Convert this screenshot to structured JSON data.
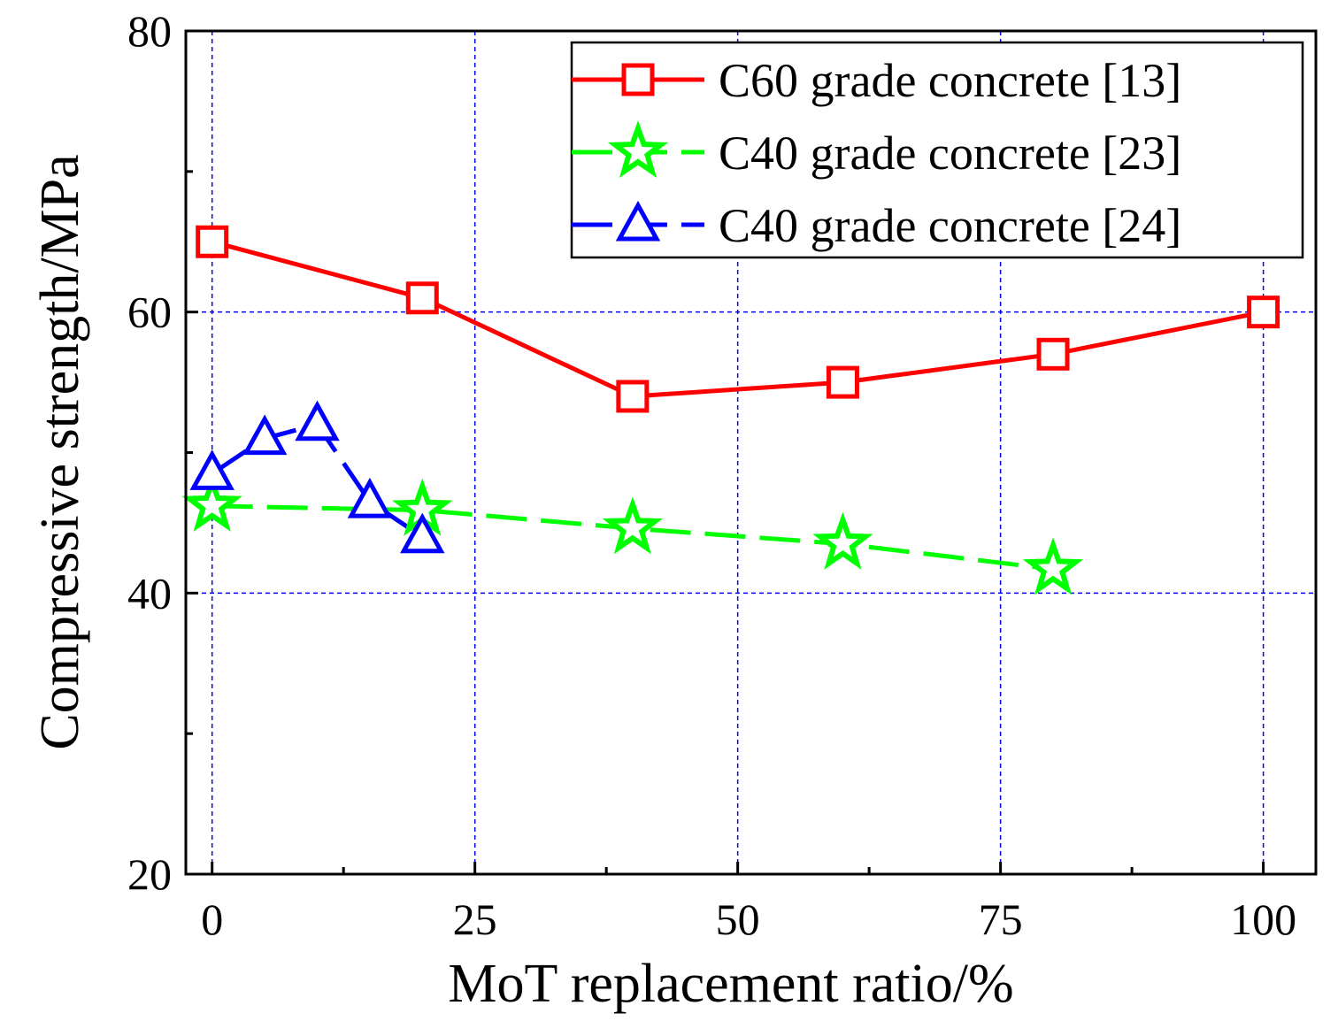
{
  "chart_data": {
    "type": "line",
    "title": "",
    "xlabel": "MoT replacement ratio/%",
    "ylabel": "Compressive strength/MPa",
    "xlim": [
      -2.5,
      105
    ],
    "ylim": [
      20,
      80
    ],
    "xticks": [
      0,
      25,
      50,
      75,
      100
    ],
    "xtick_labels": [
      "0",
      "25",
      "50",
      "75",
      "100"
    ],
    "yticks": [
      20,
      40,
      60,
      80
    ],
    "ytick_labels": [
      "20",
      "40",
      "60",
      "80"
    ],
    "grid": true,
    "legend_position": "top-right",
    "series": [
      {
        "name": "C60 grade concrete [13]",
        "color": "#ff0000",
        "marker": "square",
        "dash": "solid",
        "x": [
          0,
          20,
          40,
          60,
          80,
          100
        ],
        "y": [
          65,
          61,
          54,
          55,
          57,
          60
        ]
      },
      {
        "name": "C40 grade concrete [23]",
        "color": "#00ff00",
        "marker": "star",
        "dash": "dash",
        "x": [
          0,
          20,
          40,
          60,
          80
        ],
        "y": [
          46.2,
          45.9,
          44.6,
          43.5,
          41.7
        ]
      },
      {
        "name": "C40 grade concrete [24]",
        "color": "#0000ff",
        "marker": "triangle",
        "dash": "dash",
        "x": [
          0,
          5,
          10,
          15,
          20
        ],
        "y": [
          48.5,
          51,
          52,
          46.5,
          44
        ]
      }
    ]
  }
}
